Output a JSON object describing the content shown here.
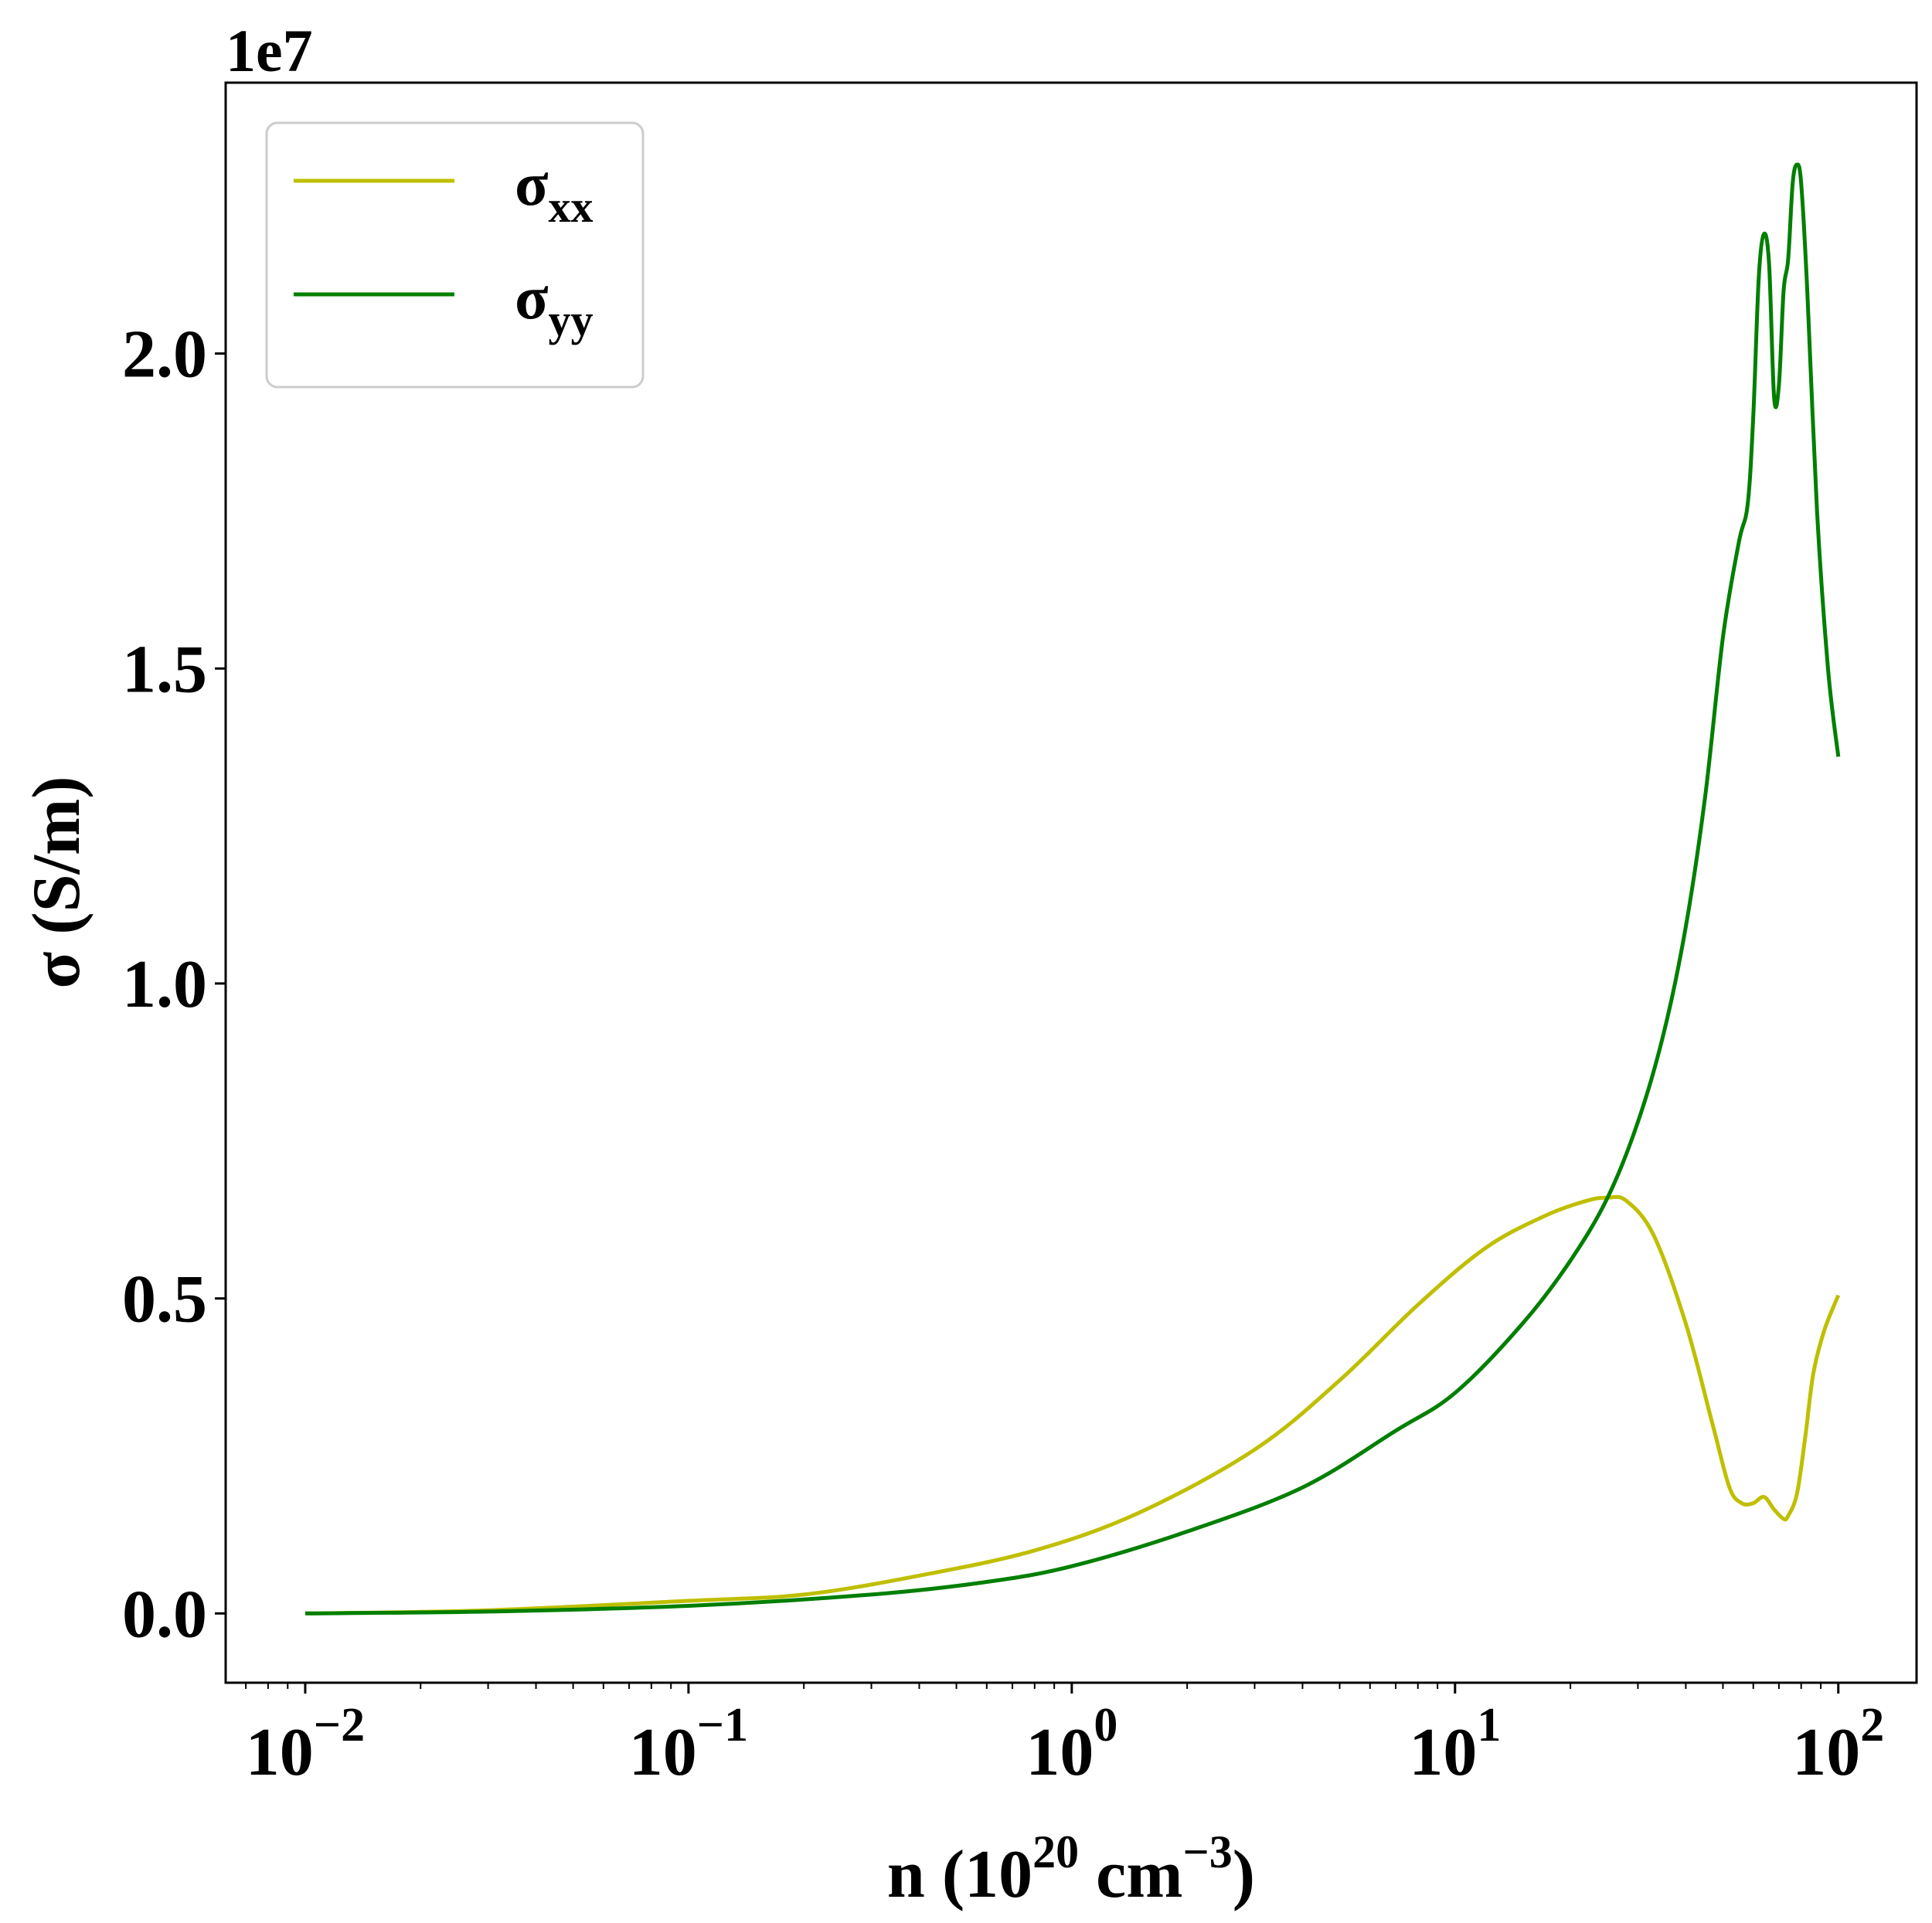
{
  "chart_data": {
    "type": "line",
    "title": "",
    "offset_text": "1e7",
    "xlabel": {
      "main": "n (10",
      "sup1": "20",
      "mid": " cm",
      "sup2": "−3",
      "end": ")"
    },
    "ylabel": "σ (S/m)",
    "xscale": "log",
    "xlim": [
      0.0062,
      160
    ],
    "ylim": [
      -0.11,
      2.43
    ],
    "y_unit_multiplier": "1e7",
    "grid": false,
    "legend_placement": "top-left",
    "x_ticks": [
      {
        "value": 0.01,
        "base": "10",
        "exp": "−2"
      },
      {
        "value": 0.1,
        "base": "10",
        "exp": "−1"
      },
      {
        "value": 1,
        "base": "10",
        "exp": "0"
      },
      {
        "value": 10,
        "base": "10",
        "exp": "1"
      },
      {
        "value": 100,
        "base": "10",
        "exp": "2"
      }
    ],
    "y_ticks": [
      {
        "value": 0.0,
        "label": "0.0"
      },
      {
        "value": 0.5,
        "label": "0.5"
      },
      {
        "value": 1.0,
        "label": "1.0"
      },
      {
        "value": 1.5,
        "label": "1.5"
      },
      {
        "value": 2.0,
        "label": "2.0"
      }
    ],
    "series": [
      {
        "name": "σxx",
        "label_base": "σ",
        "label_sub": "xx",
        "color": "#bfbf00",
        "points": [
          [
            0.01,
            0.0
          ],
          [
            0.03,
            0.005
          ],
          [
            0.1,
            0.02
          ],
          [
            0.2,
            0.03
          ],
          [
            0.4,
            0.06
          ],
          [
            0.8,
            0.1
          ],
          [
            1.5,
            0.16
          ],
          [
            3,
            0.26
          ],
          [
            5,
            0.37
          ],
          [
            8,
            0.49
          ],
          [
            12,
            0.58
          ],
          [
            17,
            0.63
          ],
          [
            22,
            0.655
          ],
          [
            25,
            0.66
          ],
          [
            28,
            0.655
          ],
          [
            33,
            0.6
          ],
          [
            40,
            0.46
          ],
          [
            47,
            0.3
          ],
          [
            52,
            0.2
          ],
          [
            56,
            0.175
          ],
          [
            60,
            0.175
          ],
          [
            64,
            0.185
          ],
          [
            68,
            0.165
          ],
          [
            72,
            0.15
          ],
          [
            74,
            0.155
          ],
          [
            78,
            0.19
          ],
          [
            82,
            0.28
          ],
          [
            86,
            0.38
          ],
          [
            92,
            0.45
          ],
          [
            100,
            0.505
          ]
        ]
      },
      {
        "name": "σyy",
        "label_base": "σ",
        "label_sub": "yy",
        "color": "#007f00",
        "points": [
          [
            0.01,
            0.0
          ],
          [
            0.03,
            0.003
          ],
          [
            0.1,
            0.012
          ],
          [
            0.3,
            0.03
          ],
          [
            0.6,
            0.05
          ],
          [
            1,
            0.075
          ],
          [
            2,
            0.13
          ],
          [
            4,
            0.2
          ],
          [
            7,
            0.29
          ],
          [
            10,
            0.35
          ],
          [
            15,
            0.46
          ],
          [
            20,
            0.56
          ],
          [
            25,
            0.66
          ],
          [
            30,
            0.78
          ],
          [
            35,
            0.92
          ],
          [
            40,
            1.09
          ],
          [
            45,
            1.3
          ],
          [
            50,
            1.55
          ],
          [
            55,
            1.7
          ],
          [
            58,
            1.76
          ],
          [
            60,
            1.9
          ],
          [
            62,
            2.12
          ],
          [
            64,
            2.19
          ],
          [
            66,
            2.14
          ],
          [
            68,
            1.93
          ],
          [
            70,
            1.95
          ],
          [
            72,
            2.1
          ],
          [
            74,
            2.15
          ],
          [
            76,
            2.27
          ],
          [
            78,
            2.3
          ],
          [
            80,
            2.27
          ],
          [
            83,
            2.1
          ],
          [
            88,
            1.75
          ],
          [
            94,
            1.5
          ],
          [
            100,
            1.36
          ]
        ]
      }
    ]
  }
}
